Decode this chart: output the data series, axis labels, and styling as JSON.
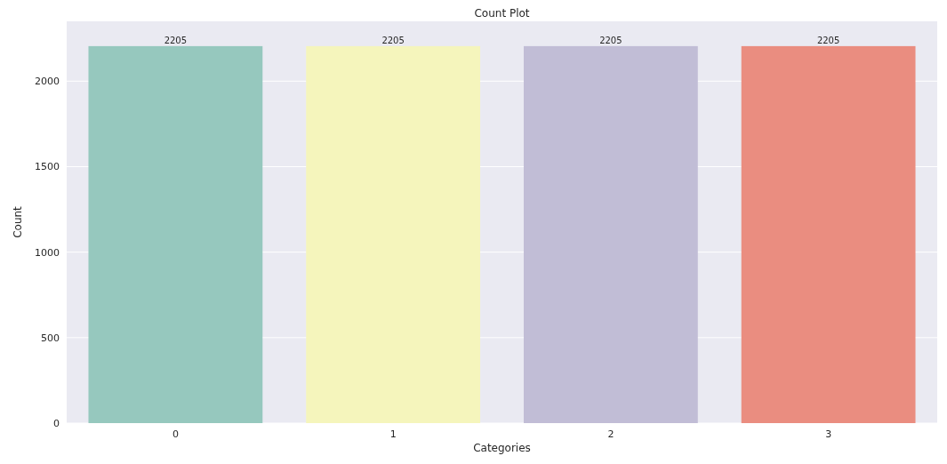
{
  "chart_data": {
    "type": "bar",
    "title": "Count Plot",
    "xlabel": "Categories",
    "ylabel": "Count",
    "categories": [
      "0",
      "1",
      "2",
      "3"
    ],
    "values": [
      2205,
      2205,
      2205,
      2205
    ],
    "colors": [
      "#96c8be",
      "#f5f5bc",
      "#c1bdd6",
      "#ea8d80"
    ],
    "ylim": [
      0,
      2350
    ],
    "yticks": [
      0,
      500,
      1000,
      1500,
      2000
    ],
    "grid": "y",
    "data_labels": true
  }
}
